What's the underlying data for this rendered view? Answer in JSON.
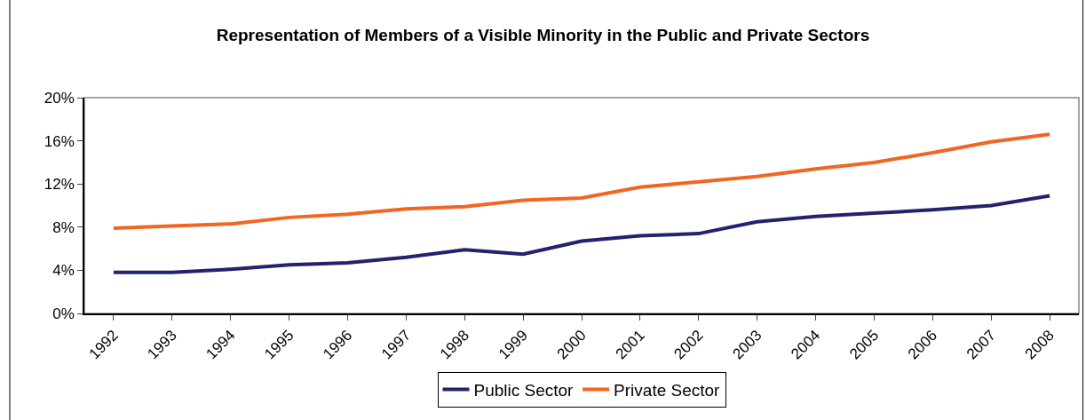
{
  "chart_data": {
    "type": "line",
    "title": "Representation of Members of a Visible Minority in the Public and Private Sectors",
    "categories": [
      "1992",
      "1993",
      "1994",
      "1995",
      "1996",
      "1997",
      "1998",
      "1999",
      "2000",
      "2001",
      "2002",
      "2003",
      "2004",
      "2005",
      "2006",
      "2007",
      "2008"
    ],
    "series": [
      {
        "name": "Public Sector",
        "color": "#22226e",
        "values": [
          3.8,
          3.8,
          4.1,
          4.5,
          4.7,
          5.2,
          5.9,
          5.5,
          6.7,
          7.2,
          7.4,
          8.5,
          9.0,
          9.3,
          9.6,
          10.0,
          10.9
        ]
      },
      {
        "name": "Private Sector",
        "color": "#f26522",
        "values": [
          7.9,
          8.1,
          8.3,
          8.9,
          9.2,
          9.7,
          9.9,
          10.5,
          10.7,
          11.7,
          12.2,
          12.7,
          13.4,
          14.0,
          14.9,
          15.9,
          16.6
        ]
      }
    ],
    "ylim": [
      0,
      20
    ],
    "yticks": [
      {
        "value": 0,
        "label": "0%"
      },
      {
        "value": 4,
        "label": "4%"
      },
      {
        "value": 8,
        "label": "8%"
      },
      {
        "value": 12,
        "label": "12%"
      },
      {
        "value": 16,
        "label": "16%"
      },
      {
        "value": 20,
        "label": "20%"
      }
    ],
    "grid": false,
    "legend": "bottom",
    "marker": "none",
    "line_style": "solid"
  }
}
